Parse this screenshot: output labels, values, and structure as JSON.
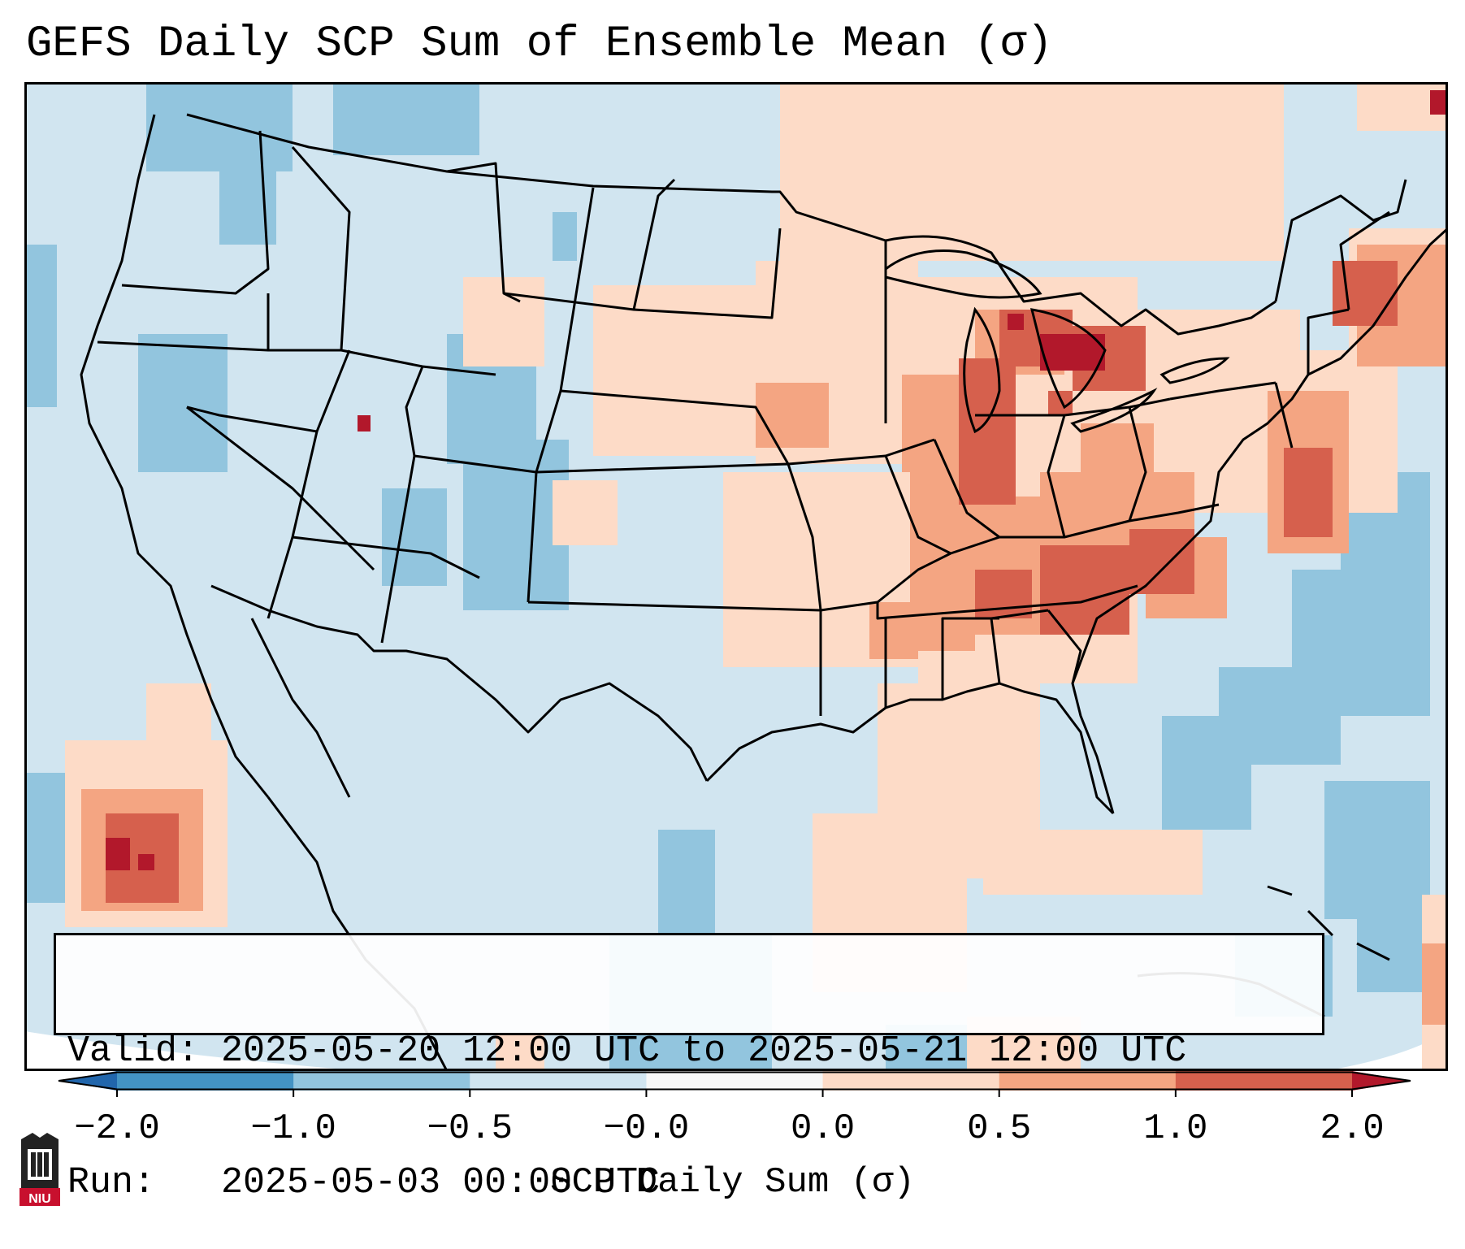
{
  "title": "GEFS Daily SCP Sum of Ensemble Mean (σ)",
  "info": {
    "valid": "Valid: 2025-05-20 12:00 UTC to 2025-05-21 12:00 UTC",
    "run": "Run:   2025-05-03 00:00 UTC"
  },
  "colorbar": {
    "label": "SCP Daily Sum (σ)",
    "ticks": [
      "−2.0",
      "−1.0",
      "−0.5",
      "−0.0",
      "0.0",
      "0.5",
      "1.0",
      "2.0"
    ],
    "bins": [
      {
        "from": "min",
        "to": -2.0,
        "color": "#2166ac"
      },
      {
        "from": -2.0,
        "to": -1.0,
        "color": "#4393c3"
      },
      {
        "from": -1.0,
        "to": -0.5,
        "color": "#92c5de"
      },
      {
        "from": -0.5,
        "to": 0.0,
        "color": "#d1e5f0"
      },
      {
        "from": 0.0,
        "to": 0.0,
        "color": "#f7f7f7"
      },
      {
        "from": 0.0,
        "to": 0.5,
        "color": "#fddbc7"
      },
      {
        "from": 0.5,
        "to": 1.0,
        "color": "#f4a582"
      },
      {
        "from": 1.0,
        "to": 2.0,
        "color": "#d6604d"
      },
      {
        "from": 2.0,
        "to": "max",
        "color": "#b2182b"
      }
    ],
    "extend": "both"
  },
  "map": {
    "background_color": "#d1e5f0",
    "outline_color": "#000000"
  },
  "logo": {
    "text": "NIU",
    "icon": "niu-logo-icon"
  }
}
